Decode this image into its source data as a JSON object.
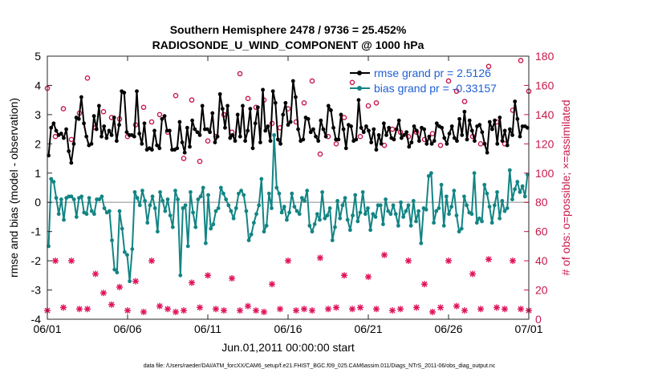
{
  "chart_data": {
    "type": "line",
    "title": "Southern Hemisphere 2478 / 9736 = 25.452%",
    "subtitle": "RADIOSONDE_U_WIND_COMPONENT @ 1000 hPa",
    "xlabel": "Jun.01,2011 00:00:00 start",
    "ylabel": "rmse and bias (model - observation)",
    "y2label": "# of obs: o=possible; ×=assimilated",
    "xlim": [
      0,
      30
    ],
    "ylim": [
      -4,
      5
    ],
    "y2lim": [
      0,
      180
    ],
    "x_ticks": [
      0,
      5,
      10,
      15,
      20,
      25,
      30
    ],
    "x_tick_labels": [
      "06/01",
      "06/06",
      "06/11",
      "06/16",
      "06/21",
      "06/26",
      "07/01"
    ],
    "y_ticks": [
      -4,
      -3,
      -2,
      -1,
      0,
      1,
      2,
      3,
      4,
      5
    ],
    "y_tick_labels": [
      "-4",
      "-3",
      "-2",
      "-1",
      "0",
      "1",
      "2",
      "3",
      "4",
      "5"
    ],
    "y2_ticks": [
      0,
      20,
      40,
      60,
      80,
      100,
      120,
      140,
      160,
      180
    ],
    "y2_tick_labels": [
      "0",
      "20",
      "40",
      "60",
      "80",
      "100",
      "120",
      "140",
      "160",
      "180"
    ],
    "legend_position": "top-right",
    "series": [
      {
        "name": "rmse grand pr = 2.5126",
        "axis": "left",
        "color": "#000000",
        "values": [
          1.6,
          2.55,
          2.7,
          2.45,
          2.3,
          2.35,
          2.2,
          2.5,
          1.75,
          1.35,
          2.0,
          2.9,
          2.85,
          3.6,
          2.7,
          2.25,
          1.95,
          2.0,
          2.95,
          2.5,
          3.3,
          2.25,
          2.6,
          2.2,
          2.45,
          2.3,
          2.9,
          2.1,
          2.65,
          3.8,
          3.75,
          2.4,
          2.3,
          2.3,
          2.25,
          3.8,
          2.35,
          2.0,
          2.7,
          1.8,
          1.85,
          1.8,
          2.45,
          1.95,
          1.85,
          2.85,
          2.95,
          2.45,
          2.45,
          1.8,
          1.8,
          1.85,
          2.75,
          2.05,
          1.7,
          2.55,
          1.9,
          2.8,
          2.5,
          2.4,
          2.3,
          3.3,
          2.5,
          2.5,
          2.4,
          3.05,
          2.05,
          2.25,
          3.7,
          3.2,
          2.55,
          3.3,
          2.2,
          2.3,
          2.1,
          3.0,
          2.25,
          3.3,
          2.1,
          2.45,
          3.2,
          1.85,
          2.7,
          3.25,
          2.05,
          3.85,
          2.45,
          2.6,
          2.1,
          3.8,
          3.4,
          2.15,
          2.0,
          3.0,
          3.4,
          2.65,
          2.75,
          4.15,
          3.6,
          2.5,
          2.1,
          2.15,
          2.9,
          2.85,
          2.4,
          2.5,
          2.25,
          2.1,
          2.8,
          2.5,
          2.25,
          3.3,
          3.15,
          2.55,
          2.15,
          2.15,
          3.0,
          2.5,
          1.85,
          2.65,
          2.6,
          2.1,
          2.15,
          3.5,
          2.55,
          2.4,
          2.6,
          2.45,
          2.05,
          2.5,
          1.8,
          2.3,
          2.0,
          2.7,
          2.3,
          2.55,
          2.2,
          2.15,
          2.5,
          2.8,
          2.2,
          2.3,
          2.4,
          1.9,
          2.05,
          2.6,
          2.45,
          2.1,
          2.55,
          2.5,
          2.0,
          2.25,
          2.0,
          2.1,
          2.7,
          2.6,
          2.55,
          2.2,
          2.0,
          2.35,
          2.6,
          2.2,
          2.1,
          2.85,
          2.3,
          3.1,
          2.15,
          2.8,
          2.45,
          2.1,
          2.6,
          2.65,
          2.4,
          2.0,
          1.7,
          2.75,
          2.5,
          2.8,
          2.0,
          2.9,
          2.1,
          2.45,
          1.95,
          2.5,
          2.3,
          3.45,
          2.85,
          2.25,
          2.6,
          2.6,
          2.55
        ],
        "marker": "filled-circle"
      },
      {
        "name": "bias grand pr = -0.33157",
        "axis": "left",
        "color": "#138484",
        "values": [
          -1.5,
          0.8,
          0.7,
          0.15,
          -0.4,
          0.1,
          -0.6,
          0.15,
          0.2,
          0.2,
          0.1,
          -0.5,
          0.15,
          0.2,
          -0.35,
          -0.4,
          0.15,
          -0.3,
          -0.4,
          0.1,
          0.1,
          0.2,
          -0.2,
          -0.35,
          -0.3,
          -1.3,
          -2.3,
          -2.4,
          -0.3,
          -0.9,
          -1.7,
          -1.8,
          -2.7,
          -1.6,
          0.35,
          0.15,
          -0.1,
          0.4,
          0.05,
          -0.7,
          -0.1,
          0.2,
          -0.2,
          -1.0,
          0.35,
          0.05,
          -0.3,
          0.1,
          -0.45,
          -0.85,
          0.4,
          0.1,
          -2.5,
          -0.2,
          -0.1,
          -1.5,
          0.35,
          -0.35,
          -0.85,
          0.1,
          0.2,
          0.5,
          -1.4,
          0.25,
          -0.9,
          -0.75,
          -0.3,
          -0.2,
          0.5,
          0.3,
          0.1,
          -0.1,
          -0.3,
          -0.55,
          -0.2,
          0.3,
          0.4,
          0.25,
          -0.3,
          -1.3,
          -1.1,
          -0.7,
          -0.4,
          -0.1,
          0.8,
          -1.0,
          -0.8,
          0.3,
          -0.2,
          2.3,
          0.5,
          0.3,
          -0.35,
          -0.15,
          -0.6,
          -0.35,
          0.3,
          -0.15,
          -0.3,
          -0.4,
          0.15,
          0.05,
          0.4,
          -0.8,
          -1.0,
          -0.75,
          -0.4,
          -0.6,
          0.35,
          -0.55,
          -0.45,
          -0.2,
          -1.3,
          -0.85,
          0.05,
          -0.55,
          -0.1,
          0.15,
          -0.6,
          -0.95,
          -0.45,
          0.25,
          -0.65,
          -0.35,
          0.35,
          -0.4,
          -0.2,
          -0.95,
          -0.4,
          -0.5,
          -0.1,
          -0.1,
          -0.75,
          0.1,
          -0.3,
          -0.4,
          -0.1,
          -0.4,
          -0.8,
          0.0,
          -0.5,
          -0.3,
          -0.1,
          -0.8,
          0.05,
          -0.65,
          -0.3,
          -1.4,
          -0.2,
          -0.25,
          0.9,
          1.0,
          -0.7,
          -0.3,
          -0.2,
          0.6,
          -0.8,
          0.2,
          -0.4,
          -0.15,
          0.4,
          -0.45,
          -1.0,
          -0.9,
          0.2,
          -0.1,
          -0.35,
          -0.4,
          1.0,
          -0.7,
          -0.55,
          -0.65,
          0.6,
          0.3,
          -0.15,
          -0.7,
          -0.1,
          0.35,
          -0.55,
          0.05,
          -0.3,
          -0.2,
          1.1,
          0.1,
          0.45,
          0.7,
          0.35,
          0.55,
          0.2,
          0.95
        ],
        "marker": "filled-circle"
      },
      {
        "name": "obs possible",
        "axis": "right",
        "color": "#c8194b",
        "marker": "open-circle",
        "x": [
          0.0,
          0.5,
          1.0,
          1.5,
          2.0,
          2.5,
          3.0,
          3.5,
          4.0,
          4.5,
          5.0,
          5.5,
          6.0,
          6.5,
          7.0,
          7.5,
          8.0,
          8.5,
          9.0,
          9.5,
          10.0,
          10.5,
          11.0,
          11.5,
          12.0,
          12.5,
          13.0,
          13.5,
          14.0,
          14.5,
          15.0,
          15.5,
          16.0,
          16.5,
          17.0,
          17.5,
          18.0,
          18.5,
          19.0,
          19.5,
          20.0,
          20.5,
          21.0,
          21.5,
          22.0,
          22.5,
          23.0,
          23.5,
          24.0,
          24.5,
          25.0,
          25.5,
          26.0,
          26.5,
          27.0,
          27.5,
          28.0,
          28.5,
          29.0,
          29.5,
          30.0
        ],
        "values": [
          158,
          125,
          144,
          123,
          141,
          165,
          131,
          142,
          138,
          137,
          125,
          133,
          145,
          135,
          140,
          128,
          153,
          110,
          150,
          108,
          122,
          125,
          140,
          128,
          168,
          151,
          145,
          150,
          134,
          131,
          144,
          135,
          148,
          163,
          113,
          125,
          120,
          138,
          162,
          125,
          146,
          148,
          119,
          130,
          128,
          125,
          128,
          123,
          127,
          119,
          163,
          156,
          149,
          125,
          120,
          173,
          135,
          120,
          143,
          177,
          156
        ]
      },
      {
        "name": "obs assimilated",
        "axis": "right",
        "color": "#e0105a",
        "marker": "asterisk",
        "x": [
          0.0,
          0.5,
          1.0,
          1.5,
          2.0,
          2.5,
          3.0,
          3.5,
          4.0,
          4.5,
          5.0,
          5.5,
          6.0,
          6.5,
          7.0,
          7.5,
          8.0,
          8.5,
          9.0,
          9.5,
          10.0,
          10.5,
          11.0,
          11.5,
          12.0,
          12.5,
          13.0,
          13.5,
          14.0,
          14.5,
          15.0,
          15.5,
          16.0,
          16.5,
          17.0,
          17.5,
          18.0,
          18.5,
          19.0,
          19.5,
          20.0,
          20.5,
          21.0,
          21.5,
          22.0,
          22.5,
          23.0,
          23.5,
          24.0,
          24.5,
          25.0,
          25.5,
          26.0,
          26.5,
          27.0,
          27.5,
          28.0,
          28.5,
          29.0,
          29.5,
          30.0
        ],
        "values": [
          6,
          40,
          8,
          40,
          7,
          7,
          31,
          18,
          10,
          22,
          6,
          26,
          5,
          40,
          9,
          7,
          5,
          6,
          25,
          8,
          30,
          7,
          6,
          28,
          6,
          9,
          6,
          5,
          24,
          7,
          40,
          6,
          7,
          6,
          42,
          7,
          8,
          30,
          7,
          8,
          29,
          7,
          44,
          6,
          7,
          40,
          8,
          24,
          5,
          8,
          40,
          9,
          6,
          31,
          7,
          41,
          8,
          7,
          40,
          7,
          6
        ]
      }
    ],
    "footnote": "data file: /Users/raeder/DAI/ATM_forcXX/CAM6_setup/f.e21.FHIST_BGC.f09_025.CAM6assim.011/Diags_NTrS_2011-06/obs_diag_output.nc"
  }
}
